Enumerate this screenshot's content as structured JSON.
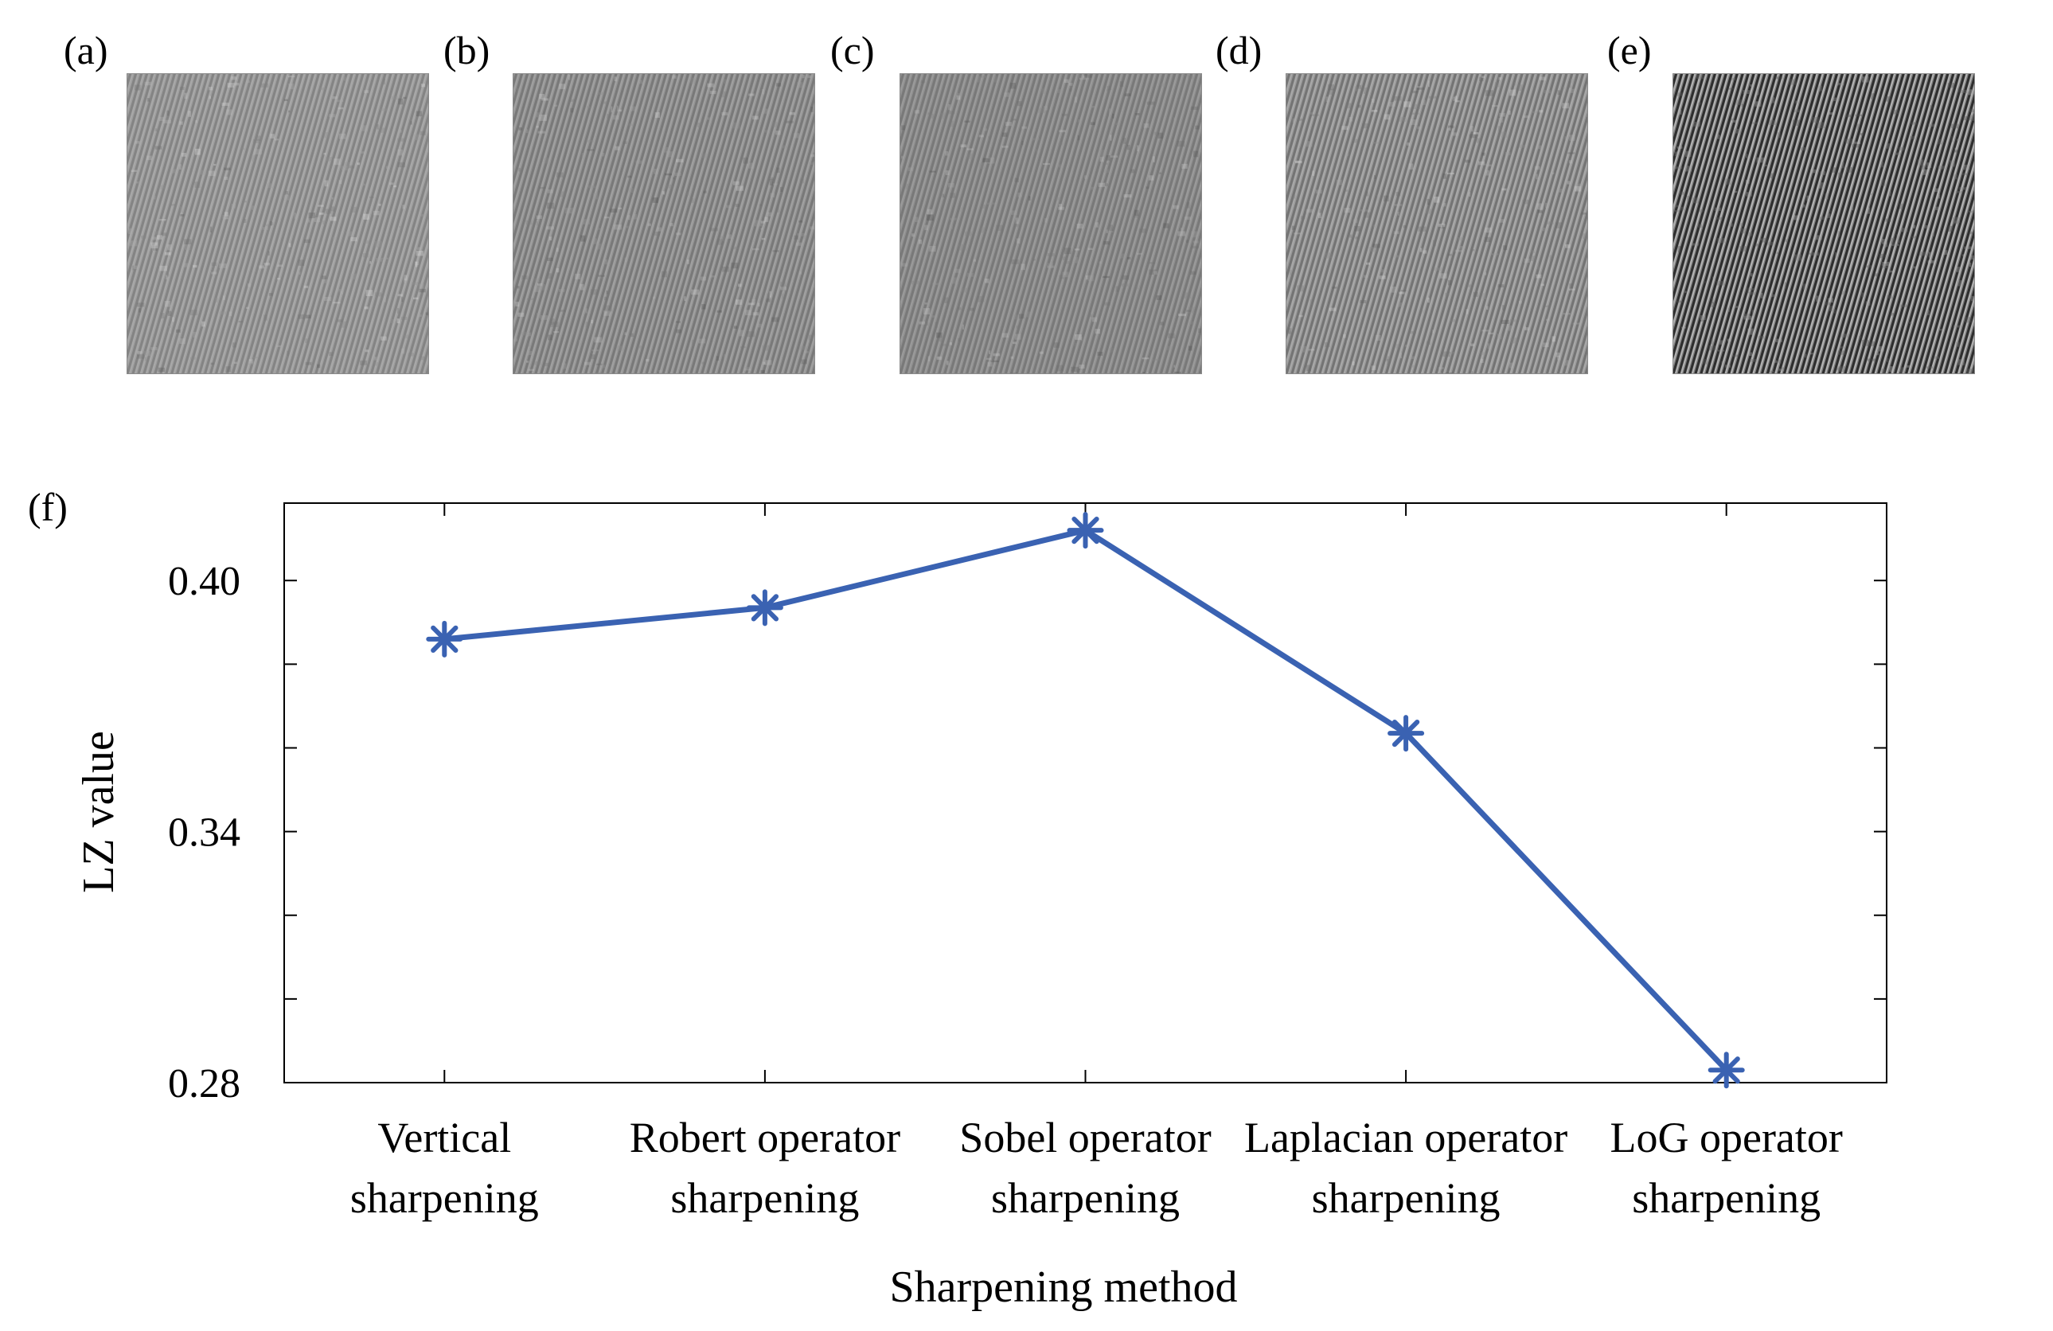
{
  "panels": [
    {
      "label": "(a)",
      "stripe_contrast": 0.22,
      "tone": 0.62
    },
    {
      "label": "(b)",
      "stripe_contrast": 0.24,
      "tone": 0.58
    },
    {
      "label": "(c)",
      "stripe_contrast": 0.2,
      "tone": 0.56
    },
    {
      "label": "(d)",
      "stripe_contrast": 0.32,
      "tone": 0.6
    },
    {
      "label": "(e)",
      "stripe_contrast": 0.85,
      "tone": 0.5
    }
  ],
  "chart_label": "(f)",
  "chart_data": {
    "type": "line",
    "categories": [
      [
        "Vertical",
        "sharpening"
      ],
      [
        "Robert operator",
        "sharpening"
      ],
      [
        "Sobel  operator",
        "sharpening"
      ],
      [
        "Laplacian operator",
        "sharpening"
      ],
      [
        "LoG  operator",
        "sharpening"
      ]
    ],
    "series": [
      {
        "values": [
          0.386,
          0.3935,
          0.412,
          0.3635,
          0.283
        ],
        "color": "#3a62b2",
        "marker": "asterisk"
      }
    ],
    "xlabel": "Sharpening method",
    "ylabel": "LZ value",
    "ylim": [
      0.28,
      0.4185
    ],
    "yticks_labeled": [
      "0.28",
      "0.34",
      "0.40"
    ],
    "yticks_labeled_values": [
      0.28,
      0.34,
      0.4
    ],
    "yticks_minor_values": [
      0.3,
      0.32,
      0.36,
      0.38
    ],
    "grid": false
  },
  "colors": {
    "line": "#3a62b2",
    "axes": "#000000"
  }
}
